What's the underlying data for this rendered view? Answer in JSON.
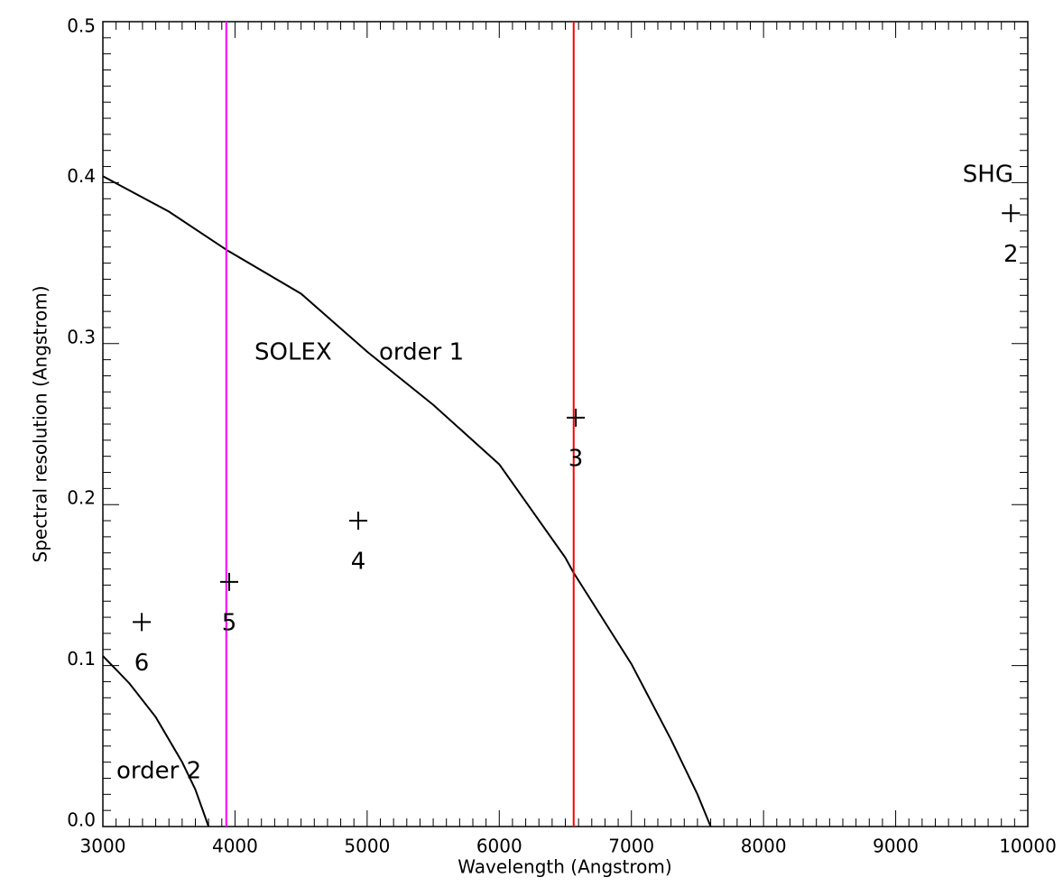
{
  "chart_data": {
    "type": "line",
    "xlabel": "Wavelength (Angstrom)",
    "ylabel": "Spectral resolution (Angstrom)",
    "xlim": [
      3000,
      10000
    ],
    "ylim": [
      0,
      0.5
    ],
    "xticks": [
      3000,
      4000,
      5000,
      6000,
      7000,
      8000,
      9000,
      10000
    ],
    "yticks": [
      {
        "value": 0,
        "label": "0.0"
      },
      0.1,
      0.2,
      0.3,
      0.4,
      0.5
    ],
    "series": [
      {
        "name": "order 1",
        "color": "#000000",
        "x": [
          3000,
          3500,
          3940,
          4500,
          5000,
          5500,
          6000,
          6500,
          6560,
          7000,
          7300,
          7500,
          7600
        ],
        "values": [
          0.404,
          0.382,
          0.358,
          0.331,
          0.295,
          0.262,
          0.225,
          0.167,
          0.158,
          0.101,
          0.054,
          0.02,
          0
        ]
      },
      {
        "name": "order 2",
        "color": "#000000",
        "x": [
          3000,
          3200,
          3400,
          3600,
          3700,
          3800
        ],
        "values": [
          0.106,
          0.089,
          0.068,
          0.04,
          0.023,
          0
        ]
      }
    ],
    "vlines": [
      {
        "x": 3934,
        "color": "#ff00ff"
      },
      {
        "x": 6563,
        "color": "#ff0000"
      }
    ],
    "points": {
      "x": [
        9872,
        6579,
        4933,
        3956,
        3294
      ],
      "values": [
        0.381,
        0.254,
        0.19,
        0.152,
        0.127
      ],
      "labels": [
        "2",
        "3",
        "4",
        "5",
        "6"
      ]
    },
    "annotations": [
      "SOLEX",
      "SHG"
    ]
  }
}
